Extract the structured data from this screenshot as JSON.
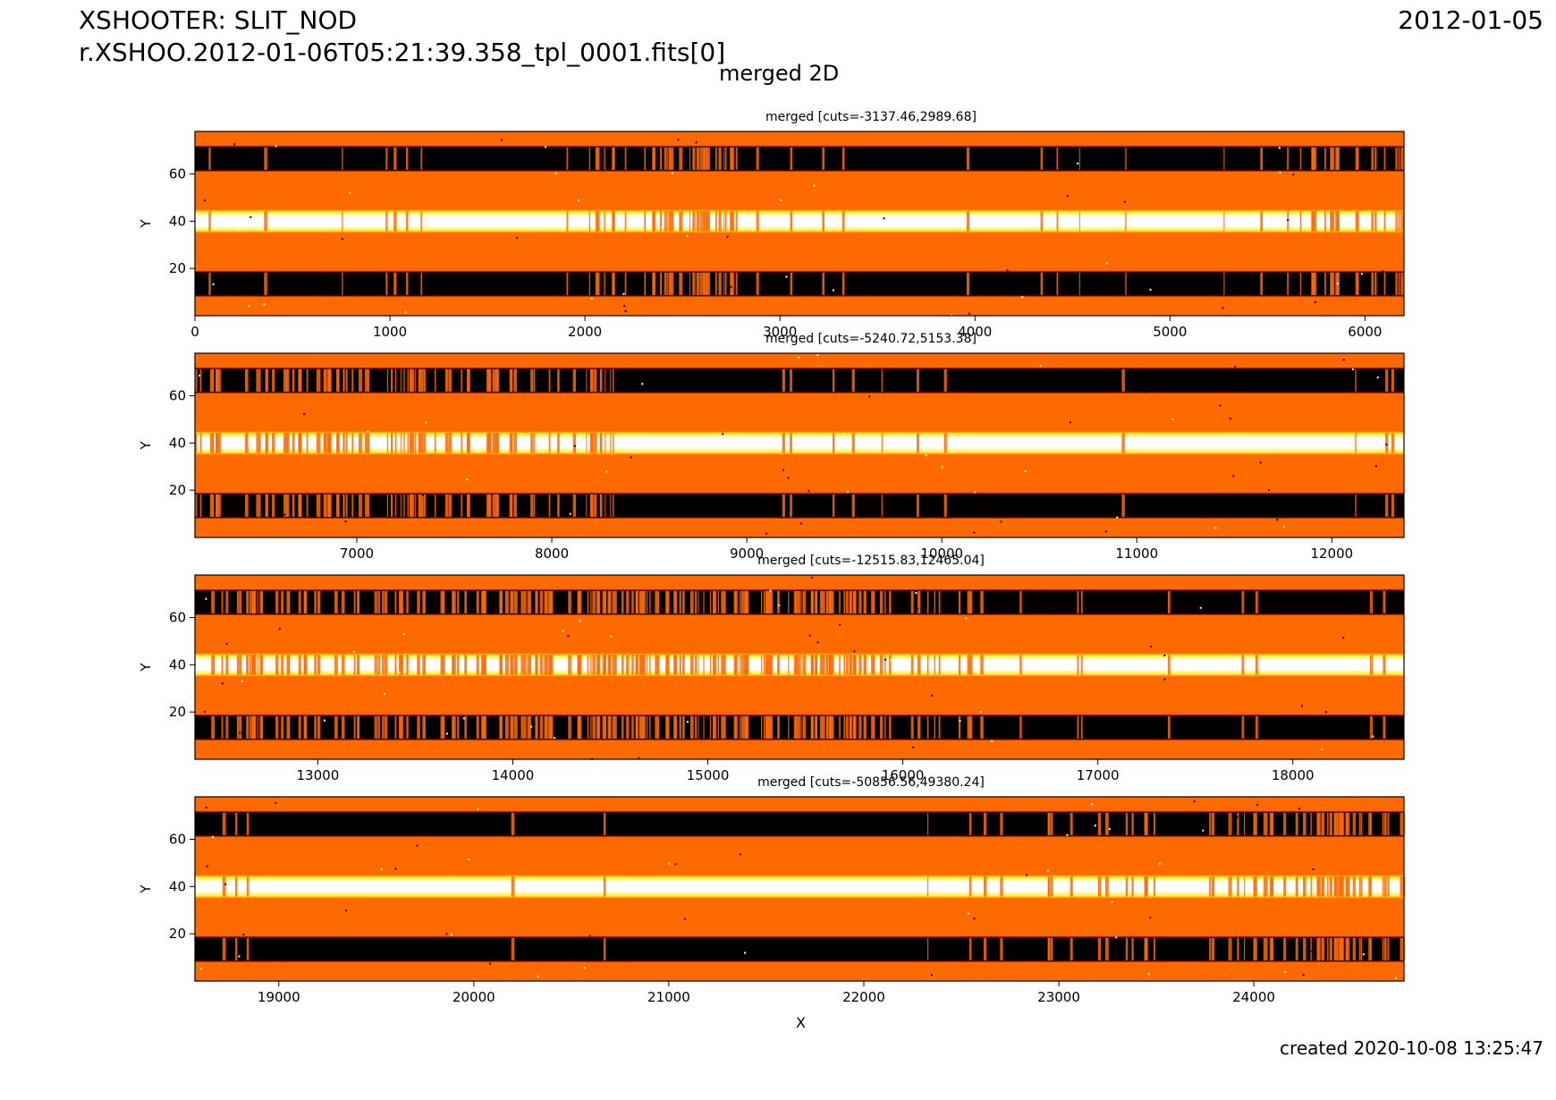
{
  "header": {
    "title_line1": "XSHOOTER: SLIT_NOD",
    "title_line2": "r.XSHOO.2012-01-06T05:21:39.358_tpl_0001.fits[0]",
    "date": "2012-01-05",
    "figure_title": "merged 2D",
    "created": "created 2020-10-08 13:25:47"
  },
  "chart_data": [
    {
      "type": "heatmap",
      "title": "merged [cuts=-3137.46,2989.68]",
      "xlim": [
        0,
        6200
      ],
      "ylim": [
        0,
        78
      ],
      "xticks": [
        0,
        1000,
        2000,
        3000,
        4000,
        5000,
        6000
      ],
      "yticks": [
        20,
        40,
        60
      ],
      "ylabel": "Y",
      "colormap": "hot",
      "traces": {
        "upper_negative_y": 67,
        "positive_y": 40,
        "lower_negative_y": 14
      }
    },
    {
      "type": "heatmap",
      "title": "merged [cuts=-5240.72,5153.38]",
      "xlim": [
        6170,
        12370
      ],
      "ylim": [
        0,
        78
      ],
      "xticks": [
        7000,
        8000,
        9000,
        10000,
        11000,
        12000
      ],
      "yticks": [
        20,
        40,
        60
      ],
      "ylabel": "Y",
      "colormap": "hot"
    },
    {
      "type": "heatmap",
      "title": "merged [cuts=-12515.83,12465.04]",
      "xlim": [
        12370,
        18570
      ],
      "ylim": [
        0,
        78
      ],
      "xticks": [
        13000,
        14000,
        15000,
        16000,
        17000,
        18000
      ],
      "yticks": [
        20,
        40,
        60
      ],
      "ylabel": "Y",
      "colormap": "hot"
    },
    {
      "type": "heatmap",
      "title": "merged [cuts=-50856.56,49380.24]",
      "xlim": [
        18570,
        24770
      ],
      "ylim": [
        0,
        78
      ],
      "xticks": [
        19000,
        20000,
        21000,
        22000,
        23000,
        24000
      ],
      "yticks": [
        20,
        40,
        60
      ],
      "ylabel": "Y",
      "xlabel": "X",
      "colormap": "hot"
    }
  ],
  "colors": {
    "background": "#ff6a00",
    "negative_trace": "#000000",
    "positive_trace": "#ffffff",
    "edge": "#ff2a00",
    "halo": "#ffee22"
  }
}
